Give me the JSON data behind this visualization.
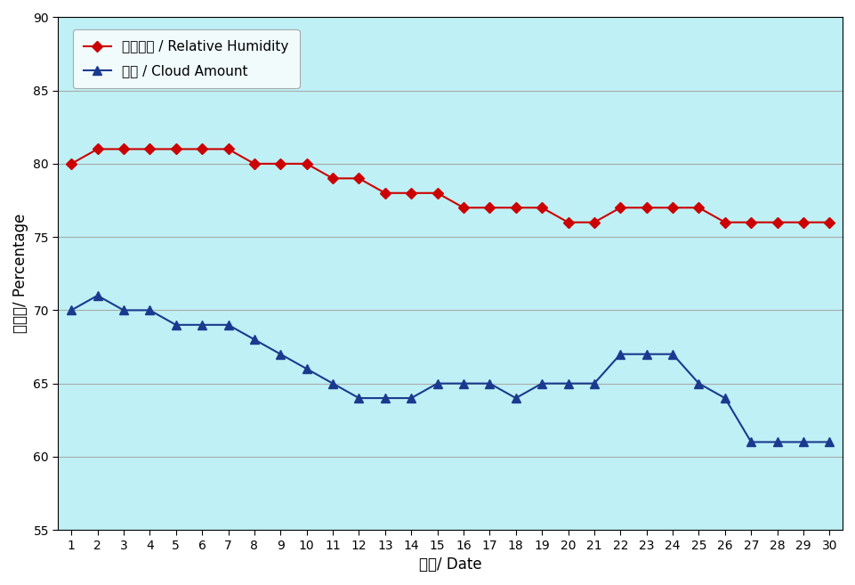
{
  "days": [
    1,
    2,
    3,
    4,
    5,
    6,
    7,
    8,
    9,
    10,
    11,
    12,
    13,
    14,
    15,
    16,
    17,
    18,
    19,
    20,
    21,
    22,
    23,
    24,
    25,
    26,
    27,
    28,
    29,
    30
  ],
  "humidity": [
    80,
    81,
    81,
    81,
    81,
    81,
    81,
    80,
    80,
    80,
    79,
    79,
    78,
    78,
    78,
    77,
    77,
    77,
    77,
    76,
    76,
    77,
    77,
    77,
    77,
    76,
    76,
    76,
    76,
    76
  ],
  "cloud": [
    70,
    71,
    70,
    70,
    69,
    69,
    69,
    68,
    67,
    66,
    65,
    64,
    64,
    64,
    65,
    65,
    65,
    64,
    65,
    65,
    65,
    67,
    67,
    67,
    65,
    64,
    61,
    61,
    61,
    61
  ],
  "humidity_color": "#cc0000",
  "cloud_color": "#1a3a8f",
  "bg_color": "#bef0f5",
  "fig_bg_color": "#ffffff",
  "ylabel": "百分比/ Percentage",
  "xlabel": "日期/ Date",
  "humidity_label": "相對濕度 / Relative Humidity",
  "cloud_label": "雲量 / Cloud Amount",
  "ylim_min": 55,
  "ylim_max": 90,
  "yticks": [
    55,
    60,
    65,
    70,
    75,
    80,
    85,
    90
  ],
  "grid_color": "#aaaaaa",
  "legend_bg": "#ffffff"
}
